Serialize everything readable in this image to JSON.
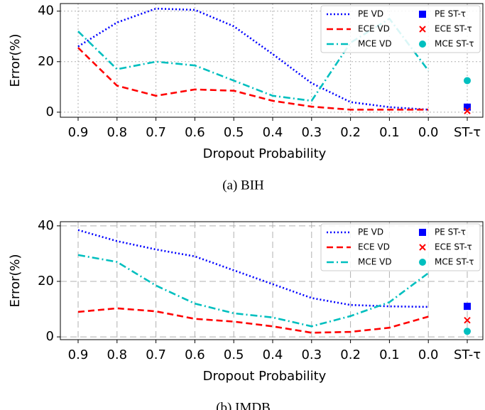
{
  "chart_data": [
    {
      "type": "line",
      "caption": "(a) BIH",
      "x_label": "Dropout Probability",
      "y_label": "Error(%)",
      "categories": [
        "0.9",
        "0.8",
        "0.7",
        "0.6",
        "0.5",
        "0.4",
        "0.3",
        "0.2",
        "0.1",
        "0.0",
        "ST-τ"
      ],
      "ylim": [
        -2,
        43
      ],
      "yticks": [
        0,
        20,
        40
      ],
      "grid": "dotted",
      "legend": "upper right",
      "series": [
        {
          "name": "PE VD",
          "color": "#0000ff",
          "style": "dotted",
          "values": [
            26,
            35.5,
            41,
            40.5,
            34,
            23,
            11.5,
            4,
            2,
            1,
            null
          ]
        },
        {
          "name": "ECE VD",
          "color": "#ff0000",
          "style": "dashed",
          "values": [
            25.5,
            10.5,
            6.5,
            9,
            8.5,
            4.5,
            2.2,
            1,
            1,
            1,
            null
          ]
        },
        {
          "name": "MCE VD",
          "color": "#00bfbf",
          "style": "dashdot",
          "values": [
            32,
            17,
            20,
            18.5,
            12.5,
            6.5,
            4.5,
            27.5,
            37,
            16.5,
            null
          ]
        },
        {
          "name": "PE ST-τ",
          "color": "#0000ff",
          "marker": "square",
          "values": [
            null,
            null,
            null,
            null,
            null,
            null,
            null,
            null,
            null,
            null,
            2
          ]
        },
        {
          "name": "ECE ST-τ",
          "color": "#ff0000",
          "marker": "x",
          "values": [
            null,
            null,
            null,
            null,
            null,
            null,
            null,
            null,
            null,
            null,
            0.5
          ]
        },
        {
          "name": "MCE ST-τ",
          "color": "#00bfbf",
          "marker": "circle",
          "values": [
            null,
            null,
            null,
            null,
            null,
            null,
            null,
            null,
            null,
            null,
            12.5
          ]
        }
      ]
    },
    {
      "type": "line",
      "caption": "(b) IMDB",
      "x_label": "Dropout Probability",
      "y_label": "Error(%)",
      "categories": [
        "0.9",
        "0.8",
        "0.7",
        "0.6",
        "0.5",
        "0.4",
        "0.3",
        "0.2",
        "0.1",
        "0.0",
        "ST-τ"
      ],
      "ylim": [
        -1,
        41.5
      ],
      "yticks": [
        0,
        20,
        40
      ],
      "grid": "dashed",
      "legend": "upper right",
      "series": [
        {
          "name": "PE VD",
          "color": "#0000ff",
          "style": "dotted",
          "values": [
            38.5,
            34.5,
            31.5,
            29,
            24,
            19,
            14,
            11.5,
            11,
            10.8,
            null
          ]
        },
        {
          "name": "ECE VD",
          "color": "#ff0000",
          "style": "dashed",
          "values": [
            9,
            10.3,
            9.2,
            6.5,
            5.5,
            3.8,
            1.5,
            1.8,
            3.3,
            7.3,
            null
          ]
        },
        {
          "name": "MCE VD",
          "color": "#00bfbf",
          "style": "dashdot",
          "values": [
            29.5,
            27,
            18.5,
            12,
            8.5,
            7,
            3.8,
            7.5,
            12.5,
            23,
            null
          ]
        },
        {
          "name": "PE ST-τ",
          "color": "#0000ff",
          "marker": "square",
          "values": [
            null,
            null,
            null,
            null,
            null,
            null,
            null,
            null,
            null,
            null,
            11
          ]
        },
        {
          "name": "ECE ST-τ",
          "color": "#ff0000",
          "marker": "x",
          "values": [
            null,
            null,
            null,
            null,
            null,
            null,
            null,
            null,
            null,
            null,
            6
          ]
        },
        {
          "name": "MCE ST-τ",
          "color": "#00bfbf",
          "marker": "circle",
          "values": [
            null,
            null,
            null,
            null,
            null,
            null,
            null,
            null,
            null,
            null,
            2
          ]
        }
      ]
    }
  ]
}
